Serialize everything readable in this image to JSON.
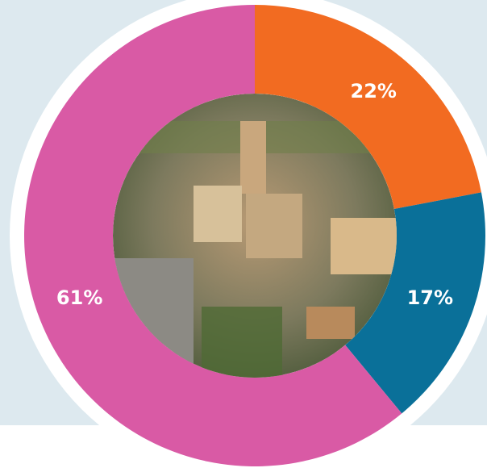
{
  "chart_data": {
    "type": "pie",
    "categories": [
      null,
      null,
      null
    ],
    "values": [
      22,
      17,
      61
    ],
    "value_labels": [
      "22%",
      "17%",
      "61%"
    ],
    "colors": [
      "#f26b21",
      "#0a7099",
      "#d95aa5"
    ]
  }
}
